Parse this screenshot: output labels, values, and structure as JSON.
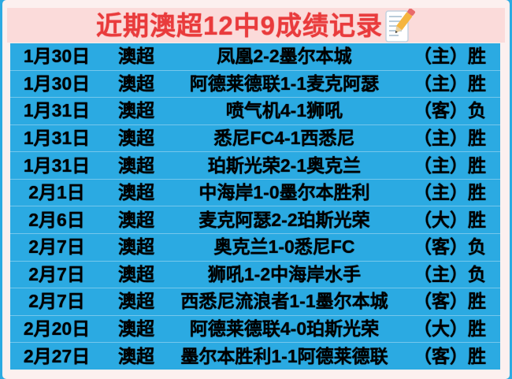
{
  "header": {
    "title": "近期澳超12中9成绩记录",
    "icon": "memo-icon"
  },
  "colors": {
    "table_blue": "#2BAAE2",
    "banner_pink": "#FBDBDA",
    "title_red": "#E93B3C",
    "card_background": "#FCF0EF",
    "row_text": "#000000"
  },
  "chart_data": {
    "type": "table",
    "title": "近期澳超12中9成绩记录",
    "record_summary": {
      "total_matches": 12,
      "wins": 9
    },
    "column_keys": [
      "date",
      "league",
      "match",
      "result"
    ],
    "rows": [
      {
        "date": "1月30日",
        "league": "澳超",
        "match": "凤凰2-2墨尔本城",
        "result": "（主）胜"
      },
      {
        "date": "1月30日",
        "league": "澳超",
        "match": "阿德莱德联1-1麦克阿瑟",
        "result": "（主）胜"
      },
      {
        "date": "1月31日",
        "league": "澳超",
        "match": "喷气机4-1狮吼",
        "result": "（客）负"
      },
      {
        "date": "1月31日",
        "league": "澳超",
        "match": "悉尼FC4-1西悉尼",
        "result": "（主）胜"
      },
      {
        "date": "1月31日",
        "league": "澳超",
        "match": "珀斯光荣2-1奥克兰",
        "result": "（主）胜"
      },
      {
        "date": "2月1日",
        "league": "澳超",
        "match": "中海岸1-0墨尔本胜利",
        "result": "（主）胜"
      },
      {
        "date": "2月6日",
        "league": "澳超",
        "match": "麦克阿瑟2-2珀斯光荣",
        "result": "（大）胜"
      },
      {
        "date": "2月7日",
        "league": "澳超",
        "match": "奥克兰1-0悉尼FC",
        "result": "（客）负"
      },
      {
        "date": "2月7日",
        "league": "澳超",
        "match": "狮吼1-2中海岸水手",
        "result": "（主）负"
      },
      {
        "date": "2月7日",
        "league": "澳超",
        "match": "西悉尼流浪者1-1墨尔本城",
        "result": "（客）胜"
      },
      {
        "date": "2月20日",
        "league": "澳超",
        "match": "阿德莱德联4-0珀斯光荣",
        "result": "（大）胜"
      },
      {
        "date": "2月27日",
        "league": "澳超",
        "match": "墨尔本胜利1-1阿德莱德联",
        "result": "（客）胜"
      }
    ]
  }
}
